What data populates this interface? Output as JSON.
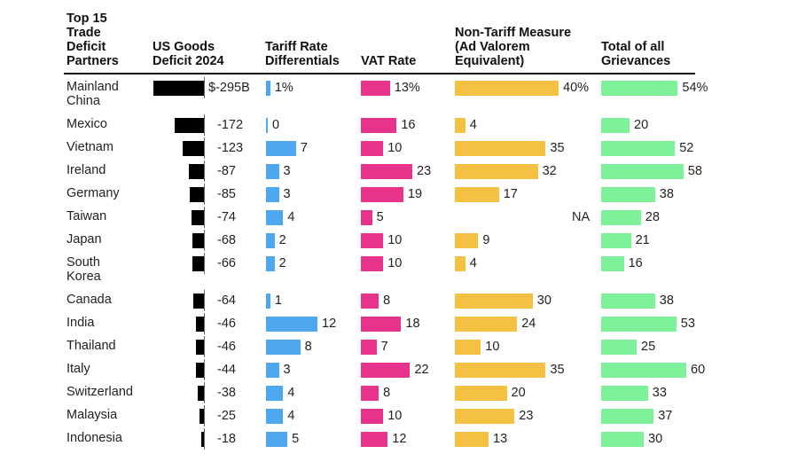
{
  "chart_data": {
    "type": "table",
    "title": "Top 15 Trade Deficit Partners",
    "headers": {
      "country": "Top 15\nTrade\nDeficit\nPartners",
      "deficit": "US Goods\nDeficit 2024",
      "tariff": "Tariff Rate\nDifferentials",
      "vat": "VAT Rate",
      "ntm": "Non-Tariff Measure\n(Ad Valorem\nEquivalent)",
      "total": "Total of all\nGrievances"
    },
    "colors": {
      "deficit": "#000000",
      "tariff": "#4ea8ef",
      "vat": "#e8338a",
      "ntm": "#f5c142",
      "total": "#7ef29a"
    },
    "units": {
      "deficit": "$B",
      "tariff": "%",
      "vat": "%",
      "ntm": "%",
      "total": "%"
    },
    "rows": [
      {
        "country": "Mainland\nChina",
        "deficit": -295,
        "deficit_label": "$-295B",
        "tariff": 1,
        "tariff_label": "1%",
        "vat": 13,
        "vat_label": "13%",
        "ntm": 40,
        "ntm_label": "40%",
        "total": 54,
        "total_label": "54%"
      },
      {
        "country": "Mexico",
        "deficit": -172,
        "deficit_label": "-172",
        "tariff": 0,
        "tariff_label": "0",
        "vat": 16,
        "vat_label": "16",
        "ntm": 4,
        "ntm_label": "4",
        "total": 20,
        "total_label": "20"
      },
      {
        "country": "Vietnam",
        "deficit": -123,
        "deficit_label": "-123",
        "tariff": 7,
        "tariff_label": "7",
        "vat": 10,
        "vat_label": "10",
        "ntm": 35,
        "ntm_label": "35",
        "total": 52,
        "total_label": "52"
      },
      {
        "country": "Ireland",
        "deficit": -87,
        "deficit_label": "-87",
        "tariff": 3,
        "tariff_label": "3",
        "vat": 23,
        "vat_label": "23",
        "ntm": 32,
        "ntm_label": "32",
        "total": 58,
        "total_label": "58"
      },
      {
        "country": "Germany",
        "deficit": -85,
        "deficit_label": "-85",
        "tariff": 3,
        "tariff_label": "3",
        "vat": 19,
        "vat_label": "19",
        "ntm": 17,
        "ntm_label": "17",
        "total": 38,
        "total_label": "38"
      },
      {
        "country": "Taiwan",
        "deficit": -74,
        "deficit_label": "-74",
        "tariff": 4,
        "tariff_label": "4",
        "vat": 5,
        "vat_label": "5",
        "ntm": null,
        "ntm_label": "NA",
        "total": 28,
        "total_label": "28"
      },
      {
        "country": "Japan",
        "deficit": -68,
        "deficit_label": "-68",
        "tariff": 2,
        "tariff_label": "2",
        "vat": 10,
        "vat_label": "10",
        "ntm": 9,
        "ntm_label": "9",
        "total": 21,
        "total_label": "21"
      },
      {
        "country": "South\nKorea",
        "deficit": -66,
        "deficit_label": "-66",
        "tariff": 2,
        "tariff_label": "2",
        "vat": 10,
        "vat_label": "10",
        "ntm": 4,
        "ntm_label": "4",
        "total": 16,
        "total_label": "16"
      },
      {
        "country": "Canada",
        "deficit": -64,
        "deficit_label": "-64",
        "tariff": 1,
        "tariff_label": "1",
        "vat": 8,
        "vat_label": "8",
        "ntm": 30,
        "ntm_label": "30",
        "total": 38,
        "total_label": "38"
      },
      {
        "country": "India",
        "deficit": -46,
        "deficit_label": "-46",
        "tariff": 12,
        "tariff_label": "12",
        "vat": 18,
        "vat_label": "18",
        "ntm": 24,
        "ntm_label": "24",
        "total": 53,
        "total_label": "53"
      },
      {
        "country": "Thailand",
        "deficit": -46,
        "deficit_label": "-46",
        "tariff": 8,
        "tariff_label": "8",
        "vat": 7,
        "vat_label": "7",
        "ntm": 10,
        "ntm_label": "10",
        "total": 25,
        "total_label": "25"
      },
      {
        "country": "Italy",
        "deficit": -44,
        "deficit_label": "-44",
        "tariff": 3,
        "tariff_label": "3",
        "vat": 22,
        "vat_label": "22",
        "ntm": 35,
        "ntm_label": "35",
        "total": 60,
        "total_label": "60"
      },
      {
        "country": "Switzerland",
        "deficit": -38,
        "deficit_label": "-38",
        "tariff": 4,
        "tariff_label": "4",
        "vat": 8,
        "vat_label": "8",
        "ntm": 20,
        "ntm_label": "20",
        "total": 33,
        "total_label": "33"
      },
      {
        "country": "Malaysia",
        "deficit": -25,
        "deficit_label": "-25",
        "tariff": 4,
        "tariff_label": "4",
        "vat": 10,
        "vat_label": "10",
        "ntm": 23,
        "ntm_label": "23",
        "total": 37,
        "total_label": "37"
      },
      {
        "country": "Indonesia",
        "deficit": -18,
        "deficit_label": "-18",
        "tariff": 5,
        "tariff_label": "5",
        "vat": 12,
        "vat_label": "12",
        "ntm": 13,
        "ntm_label": "13",
        "total": 30,
        "total_label": "30"
      }
    ]
  }
}
